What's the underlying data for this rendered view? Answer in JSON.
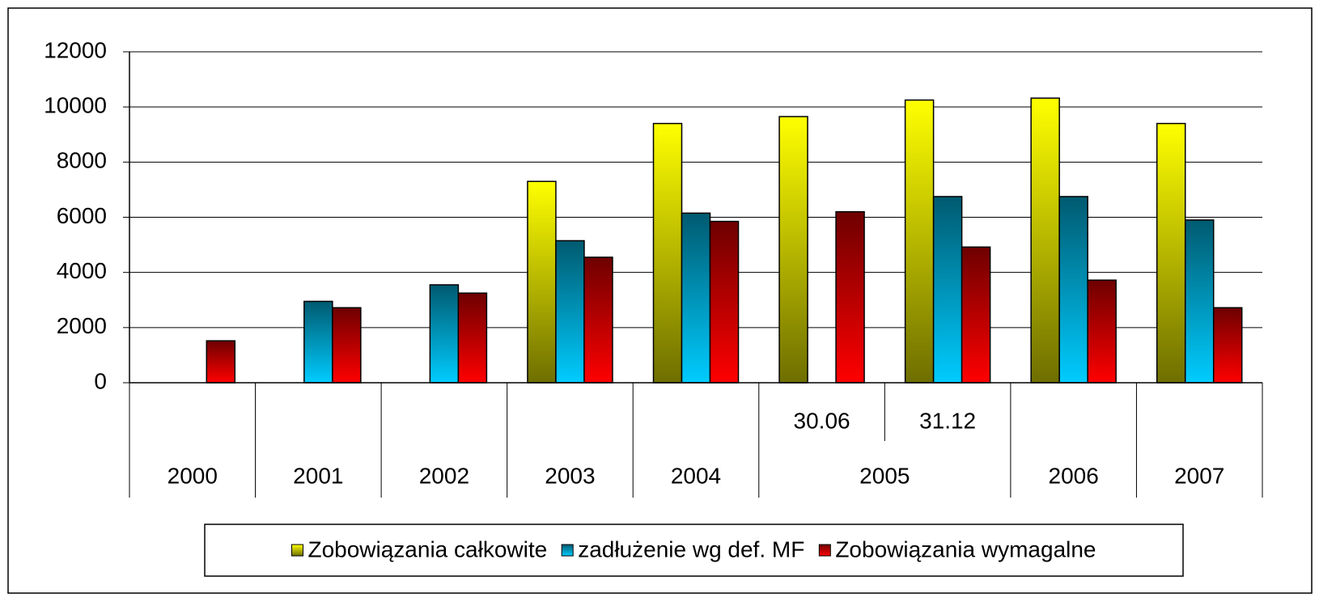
{
  "chart_data": {
    "type": "bar",
    "categories": [
      "2000",
      "2001",
      "2002",
      "2003",
      "2004",
      "30.06",
      "31.12",
      "2006",
      "2007"
    ],
    "category_groups": [
      {
        "label": "2005",
        "members": [
          "30.06",
          "31.12"
        ]
      }
    ],
    "series": [
      {
        "name": "Zobowiązania całkowite",
        "gradient": [
          "#ffff00",
          "#6e6e00"
        ],
        "values": [
          null,
          null,
          null,
          7300,
          9400,
          9650,
          10250,
          10320,
          9400
        ]
      },
      {
        "name": "zadłużenie wg def. MF",
        "gradient": [
          "#005a70",
          "#00ccff"
        ],
        "values": [
          null,
          2950,
          3550,
          5150,
          6150,
          null,
          6750,
          6750,
          5900
        ]
      },
      {
        "name": "Zobowiązania wymagalne",
        "gradient": [
          "#6e0000",
          "#ff0000"
        ],
        "values": [
          1520,
          2720,
          3250,
          4550,
          5850,
          6200,
          4920,
          3720,
          2720
        ]
      }
    ],
    "ylim": [
      0,
      12000
    ],
    "yticks": [
      0,
      2000,
      4000,
      6000,
      8000,
      10000,
      12000
    ],
    "grid": true,
    "legend": "bottom"
  }
}
